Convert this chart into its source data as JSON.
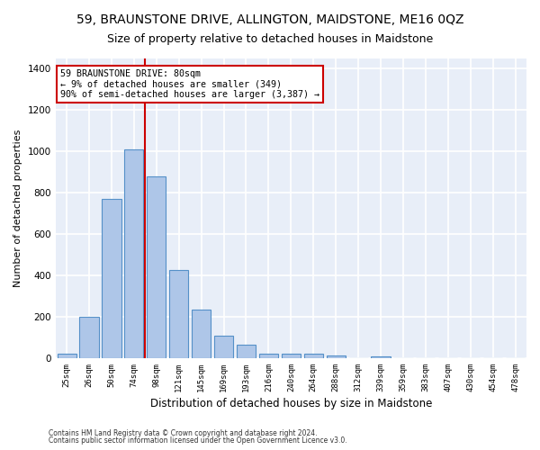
{
  "title": "59, BRAUNSTONE DRIVE, ALLINGTON, MAIDSTONE, ME16 0QZ",
  "subtitle": "Size of property relative to detached houses in Maidstone",
  "xlabel": "Distribution of detached houses by size in Maidstone",
  "ylabel": "Number of detached properties",
  "categories": [
    "25sqm",
    "26sqm",
    "50sqm",
    "74sqm",
    "98sqm",
    "121sqm",
    "145sqm",
    "169sqm",
    "193sqm",
    "216sqm",
    "240sqm",
    "264sqm",
    "288sqm",
    "312sqm",
    "339sqm",
    "359sqm",
    "383sqm",
    "407sqm",
    "430sqm",
    "454sqm",
    "478sqm"
  ],
  "values": [
    20,
    200,
    770,
    1010,
    880,
    425,
    235,
    110,
    65,
    20,
    20,
    20,
    15,
    0,
    10,
    0,
    0,
    0,
    0,
    0,
    0
  ],
  "bar_color": "#aec6e8",
  "bar_edge_color": "#5590c8",
  "background_color": "#e8eef8",
  "grid_color": "#ffffff",
  "annotation_box_text": "59 BRAUNSTONE DRIVE: 80sqm\n← 9% of detached houses are smaller (349)\n90% of semi-detached houses are larger (3,387) →",
  "vline_x": 3.5,
  "vline_color": "#cc0000",
  "ylim": [
    0,
    1450
  ],
  "yticks": [
    0,
    200,
    400,
    600,
    800,
    1000,
    1200,
    1400
  ],
  "footer_line1": "Contains HM Land Registry data © Crown copyright and database right 2024.",
  "footer_line2": "Contains public sector information licensed under the Open Government Licence v3.0.",
  "fig_facecolor": "#ffffff",
  "title_fontsize": 10,
  "subtitle_fontsize": 9,
  "tick_label_fontsize": 6.5,
  "ylabel_fontsize": 8,
  "xlabel_fontsize": 8.5,
  "footer_fontsize": 5.5
}
